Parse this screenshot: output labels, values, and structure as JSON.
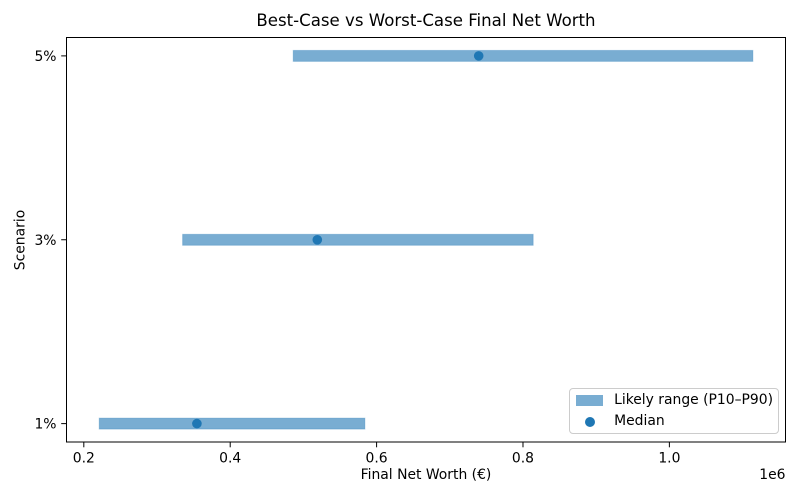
{
  "chart_data": {
    "type": "bar",
    "orientation": "horizontal",
    "title": "Best-Case vs Worst-Case Final Net Worth",
    "xlabel": "Final Net Worth (€)",
    "ylabel": "Scenario",
    "categories": [
      "1%",
      "3%",
      "5%"
    ],
    "series": [
      {
        "name": "P10",
        "values": [
          221000,
          335000,
          486000
        ]
      },
      {
        "name": "Median",
        "values": [
          354500,
          519000,
          739500
        ]
      },
      {
        "name": "P90",
        "values": [
          584000,
          814000,
          1114000
        ]
      }
    ],
    "xlim": [
      176350,
      1158650
    ],
    "ylim": [
      -0.1,
      2.1
    ],
    "xticks": [
      200000,
      400000,
      600000,
      800000,
      1000000
    ],
    "xtick_labels": [
      "0.2",
      "0.4",
      "0.6",
      "0.8",
      "1.0"
    ],
    "x_offset_text": "1e6",
    "grid": false,
    "legend": {
      "position": "lower right",
      "entries": [
        {
          "label": "Likely range (P10–P90)",
          "marker": "bar"
        },
        {
          "label": "Median",
          "marker": "dot"
        }
      ]
    },
    "colors": {
      "base_blue": "#1f77b4",
      "range_fill": "rgba(31,119,180,0.6)",
      "range_edge": "rgba(31,119,180,0.28)",
      "median_dot": "#1f77b4",
      "spine": "#000000",
      "text": "#000000",
      "legend_border": "#cccccc"
    }
  }
}
